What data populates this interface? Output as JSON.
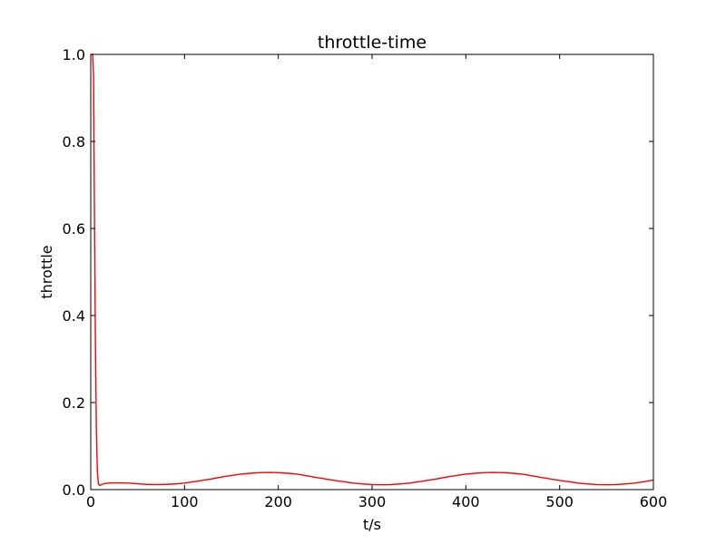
{
  "colors": {
    "series": "#ff0000",
    "axes": "#000000",
    "background": "#ffffff"
  },
  "chart_data": {
    "type": "line",
    "title": "throttle-time",
    "xlabel": "t/s",
    "ylabel": "throttle",
    "xlim": [
      0,
      600
    ],
    "ylim": [
      0,
      1.0
    ],
    "x_ticks": [
      0,
      100,
      200,
      300,
      400,
      500,
      600
    ],
    "x_tick_labels": [
      "0",
      "100",
      "200",
      "300",
      "400",
      "500",
      "600"
    ],
    "y_ticks": [
      0.0,
      0.2,
      0.4,
      0.6,
      0.8,
      1.0
    ],
    "y_tick_labels": [
      "0.0",
      "0.2",
      "0.4",
      "0.6",
      "0.8",
      "1.0"
    ],
    "grid": false,
    "legend": "none",
    "series": [
      {
        "color": "#ff0000",
        "x": [
          0,
          1,
          2,
          3,
          4,
          5,
          6,
          7,
          8,
          9,
          10,
          12,
          15,
          20,
          25,
          30,
          40,
          50,
          60,
          70,
          80,
          90,
          100,
          110,
          120,
          130,
          140,
          150,
          160,
          170,
          180,
          190,
          200,
          210,
          220,
          230,
          240,
          250,
          260,
          270,
          280,
          290,
          300,
          310,
          320,
          330,
          340,
          350,
          360,
          370,
          380,
          390,
          400,
          410,
          420,
          430,
          440,
          450,
          460,
          470,
          480,
          490,
          500,
          510,
          520,
          530,
          540,
          550,
          560,
          570,
          580,
          590,
          600
        ],
        "y": [
          1.0,
          1.0,
          1.0,
          0.95,
          0.62,
          0.33,
          0.14,
          0.045,
          0.015,
          0.01,
          0.01,
          0.012,
          0.014,
          0.015,
          0.0155,
          0.0155,
          0.015,
          0.0135,
          0.012,
          0.0115,
          0.012,
          0.013,
          0.015,
          0.018,
          0.0215,
          0.025,
          0.029,
          0.0325,
          0.0355,
          0.0375,
          0.039,
          0.0395,
          0.039,
          0.0375,
          0.0355,
          0.032,
          0.028,
          0.0245,
          0.021,
          0.018,
          0.015,
          0.013,
          0.0115,
          0.011,
          0.0115,
          0.013,
          0.015,
          0.018,
          0.0215,
          0.025,
          0.029,
          0.0325,
          0.0355,
          0.0375,
          0.039,
          0.0395,
          0.039,
          0.0375,
          0.0355,
          0.032,
          0.028,
          0.0245,
          0.021,
          0.018,
          0.015,
          0.013,
          0.0115,
          0.011,
          0.0115,
          0.013,
          0.015,
          0.018,
          0.022
        ]
      }
    ]
  }
}
